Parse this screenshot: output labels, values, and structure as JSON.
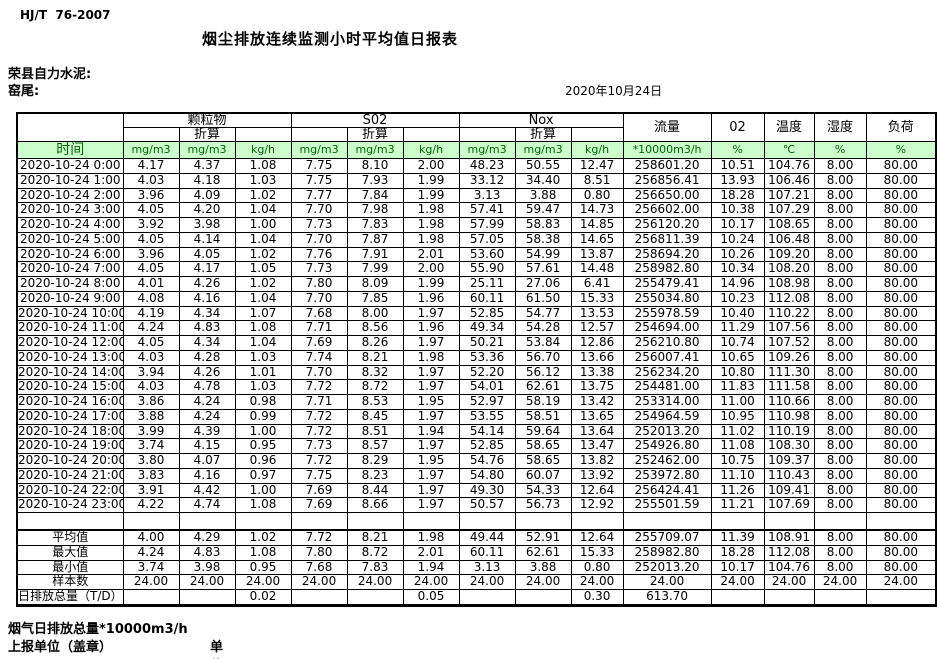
{
  "meta": {
    "standard": "HJ/T  76-2007",
    "title": "烟尘排放连续监测小时平均值日报表",
    "company": "荣县自力水泥:",
    "location": "窑尾:",
    "date": "2020年10月24日"
  },
  "colors": {
    "header_green_bg": "#ccffcc",
    "header_green_text": "#006600",
    "border": "#000000"
  },
  "table": {
    "time_header": "时间",
    "groups": [
      {
        "label": "颗粒物",
        "sub": "折算"
      },
      {
        "label": "S02",
        "sub": "折算"
      },
      {
        "label": "Nox",
        "sub": "折算"
      }
    ],
    "scalar_cols": [
      {
        "label": "流量",
        "unit": "*10000m3/h"
      },
      {
        "label": "02",
        "unit": "%"
      },
      {
        "label": "温度",
        "unit": "℃"
      },
      {
        "label": "湿度",
        "unit": "%"
      },
      {
        "label": "负荷",
        "unit": "%"
      }
    ],
    "units_row": [
      "mg/m3",
      "mg/m3",
      "kg/h",
      "mg/m3",
      "mg/m3",
      "kg/h",
      "mg/m3",
      "mg/m3",
      "kg/h",
      "*10000m3/h",
      "%",
      "℃",
      "%",
      "%"
    ],
    "rows": [
      {
        "time": "2020-10-24  0:00",
        "values": [
          "4.17",
          "4.37",
          "1.08",
          "7.75",
          "8.10",
          "2.00",
          "48.23",
          "50.55",
          "12.47",
          "258601.20",
          "10.51",
          "104.76",
          "8.00",
          "80.00"
        ]
      },
      {
        "time": "2020-10-24  1:00",
        "values": [
          "4.03",
          "4.18",
          "1.03",
          "7.75",
          "7.93",
          "1.99",
          "33.12",
          "34.40",
          "8.51",
          "256856.41",
          "13.93",
          "106.46",
          "8.00",
          "80.00"
        ]
      },
      {
        "time": "2020-10-24  2:00",
        "values": [
          "3.96",
          "4.09",
          "1.02",
          "7.77",
          "7.84",
          "1.99",
          "3.13",
          "3.88",
          "0.80",
          "256650.00",
          "18.28",
          "107.21",
          "8.00",
          "80.00"
        ]
      },
      {
        "time": "2020-10-24  3:00",
        "values": [
          "4.05",
          "4.20",
          "1.04",
          "7.70",
          "7.98",
          "1.98",
          "57.41",
          "59.47",
          "14.73",
          "256602.00",
          "10.38",
          "107.29",
          "8.00",
          "80.00"
        ]
      },
      {
        "time": "2020-10-24  4:00",
        "values": [
          "3.92",
          "3.98",
          "1.00",
          "7.73",
          "7.83",
          "1.98",
          "57.99",
          "58.83",
          "14.85",
          "256120.20",
          "10.17",
          "108.65",
          "8.00",
          "80.00"
        ]
      },
      {
        "time": "2020-10-24  5:00",
        "values": [
          "4.05",
          "4.14",
          "1.04",
          "7.70",
          "7.87",
          "1.98",
          "57.05",
          "58.38",
          "14.65",
          "256811.39",
          "10.24",
          "106.48",
          "8.00",
          "80.00"
        ]
      },
      {
        "time": "2020-10-24  6:00",
        "values": [
          "3.96",
          "4.05",
          "1.02",
          "7.76",
          "7.91",
          "2.01",
          "53.60",
          "54.99",
          "13.87",
          "258694.20",
          "10.26",
          "109.20",
          "8.00",
          "80.00"
        ]
      },
      {
        "time": "2020-10-24  7:00",
        "values": [
          "4.05",
          "4.17",
          "1.05",
          "7.73",
          "7.99",
          "2.00",
          "55.90",
          "57.61",
          "14.48",
          "258982.80",
          "10.34",
          "108.20",
          "8.00",
          "80.00"
        ]
      },
      {
        "time": "2020-10-24  8:00",
        "values": [
          "4.01",
          "4.26",
          "1.02",
          "7.80",
          "8.09",
          "1.99",
          "25.11",
          "27.06",
          "6.41",
          "255479.41",
          "14.96",
          "108.98",
          "8.00",
          "80.00"
        ]
      },
      {
        "time": "2020-10-24  9:00",
        "values": [
          "4.08",
          "4.16",
          "1.04",
          "7.70",
          "7.85",
          "1.96",
          "60.11",
          "61.50",
          "15.33",
          "255034.80",
          "10.23",
          "112.08",
          "8.00",
          "80.00"
        ]
      },
      {
        "time": "2020-10-24 10:00",
        "values": [
          "4.19",
          "4.34",
          "1.07",
          "7.68",
          "8.00",
          "1.97",
          "52.85",
          "54.77",
          "13.53",
          "255978.59",
          "10.40",
          "110.22",
          "8.00",
          "80.00"
        ]
      },
      {
        "time": "2020-10-24 11:00",
        "values": [
          "4.24",
          "4.83",
          "1.08",
          "7.71",
          "8.56",
          "1.96",
          "49.34",
          "54.28",
          "12.57",
          "254694.00",
          "11.29",
          "107.56",
          "8.00",
          "80.00"
        ]
      },
      {
        "time": "2020-10-24 12:00",
        "values": [
          "4.05",
          "4.34",
          "1.04",
          "7.69",
          "8.26",
          "1.97",
          "50.21",
          "53.84",
          "12.86",
          "256210.80",
          "10.74",
          "107.52",
          "8.00",
          "80.00"
        ]
      },
      {
        "time": "2020-10-24 13:00",
        "values": [
          "4.03",
          "4.28",
          "1.03",
          "7.74",
          "8.21",
          "1.98",
          "53.36",
          "56.70",
          "13.66",
          "256007.41",
          "10.65",
          "109.26",
          "8.00",
          "80.00"
        ]
      },
      {
        "time": "2020-10-24 14:00",
        "values": [
          "3.94",
          "4.26",
          "1.01",
          "7.70",
          "8.32",
          "1.97",
          "52.20",
          "56.12",
          "13.38",
          "256234.20",
          "10.80",
          "111.30",
          "8.00",
          "80.00"
        ]
      },
      {
        "time": "2020-10-24 15:00",
        "values": [
          "4.03",
          "4.78",
          "1.03",
          "7.72",
          "8.72",
          "1.97",
          "54.01",
          "62.61",
          "13.75",
          "254481.00",
          "11.83",
          "111.58",
          "8.00",
          "80.00"
        ]
      },
      {
        "time": "2020-10-24 16:00",
        "values": [
          "3.86",
          "4.24",
          "0.98",
          "7.71",
          "8.53",
          "1.95",
          "52.97",
          "58.19",
          "13.42",
          "253314.00",
          "11.00",
          "110.66",
          "8.00",
          "80.00"
        ]
      },
      {
        "time": "2020-10-24 17:00",
        "values": [
          "3.88",
          "4.24",
          "0.99",
          "7.72",
          "8.45",
          "1.97",
          "53.55",
          "58.51",
          "13.65",
          "254964.59",
          "10.95",
          "110.98",
          "8.00",
          "80.00"
        ]
      },
      {
        "time": "2020-10-24 18:00",
        "values": [
          "3.99",
          "4.39",
          "1.00",
          "7.72",
          "8.51",
          "1.94",
          "54.14",
          "59.64",
          "13.64",
          "252013.20",
          "11.02",
          "110.19",
          "8.00",
          "80.00"
        ]
      },
      {
        "time": "2020-10-24 19:00",
        "values": [
          "3.74",
          "4.15",
          "0.95",
          "7.73",
          "8.57",
          "1.97",
          "52.85",
          "58.65",
          "13.47",
          "254926.80",
          "11.08",
          "108.30",
          "8.00",
          "80.00"
        ]
      },
      {
        "time": "2020-10-24 20:00",
        "values": [
          "3.80",
          "4.07",
          "0.96",
          "7.72",
          "8.29",
          "1.95",
          "54.76",
          "58.65",
          "13.82",
          "252462.00",
          "10.75",
          "109.37",
          "8.00",
          "80.00"
        ]
      },
      {
        "time": "2020-10-24 21:00",
        "values": [
          "3.83",
          "4.16",
          "0.97",
          "7.75",
          "8.23",
          "1.97",
          "54.80",
          "60.07",
          "13.92",
          "253972.80",
          "11.10",
          "110.43",
          "8.00",
          "80.00"
        ]
      },
      {
        "time": "2020-10-24 22:00",
        "values": [
          "3.91",
          "4.42",
          "1.00",
          "7.69",
          "8.44",
          "1.97",
          "49.30",
          "54.33",
          "12.64",
          "256424.41",
          "11.26",
          "109.41",
          "8.00",
          "80.00"
        ]
      },
      {
        "time": "2020-10-24 23:00",
        "values": [
          "4.22",
          "4.74",
          "1.08",
          "7.69",
          "8.66",
          "1.97",
          "50.57",
          "56.73",
          "12.92",
          "255501.59",
          "11.21",
          "107.69",
          "8.00",
          "80.00"
        ]
      }
    ],
    "summary": [
      {
        "label": "平均值",
        "type": "avg",
        "values": [
          "4.00",
          "4.29",
          "1.02",
          "7.72",
          "8.21",
          "1.98",
          "49.44",
          "52.91",
          "12.64",
          "255709.07",
          "11.39",
          "108.91",
          "8.00",
          "80.00"
        ]
      },
      {
        "label": "最大值",
        "type": "max",
        "values": [
          "4.24",
          "4.83",
          "1.08",
          "7.80",
          "8.72",
          "2.01",
          "60.11",
          "62.61",
          "15.33",
          "258982.80",
          "18.28",
          "112.08",
          "8.00",
          "80.00"
        ]
      },
      {
        "label": "最小值",
        "type": "min",
        "values": [
          "3.74",
          "3.98",
          "0.95",
          "7.68",
          "7.83",
          "1.94",
          "3.13",
          "3.88",
          "0.80",
          "252013.20",
          "10.17",
          "104.76",
          "8.00",
          "80.00"
        ]
      },
      {
        "label": "样本数",
        "type": "count",
        "values": [
          "24.00",
          "24.00",
          "24.00",
          "24.00",
          "24.00",
          "24.00",
          "24.00",
          "24.00",
          "24.00",
          "24.00",
          "24.00",
          "24.00",
          "24.00",
          "24.00"
        ]
      },
      {
        "label": "日排放总量（T/D）",
        "type": "total",
        "values": [
          "",
          "",
          "0.02",
          "",
          "",
          "0.05",
          "",
          "",
          "0.30",
          "613.70",
          "",
          "",
          "",
          ""
        ]
      }
    ]
  },
  "footer": {
    "line1": "烟气日排放总量*10000m3/h",
    "report_unit_label": "上报单位（盖章）",
    "unit_label": "单位"
  }
}
